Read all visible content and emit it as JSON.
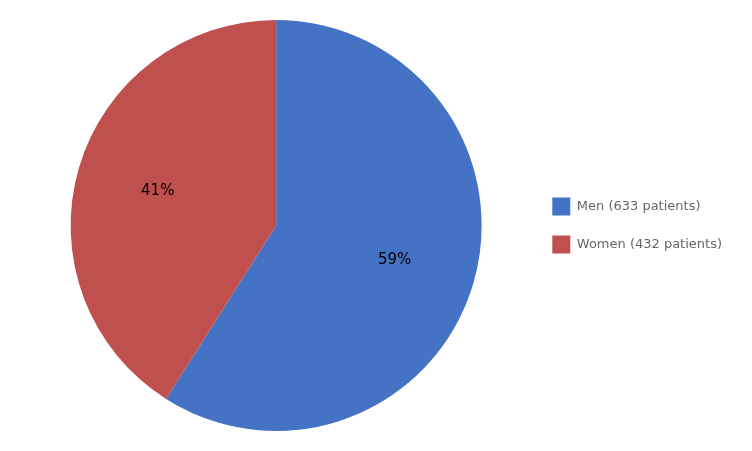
{
  "chart_data": {
    "type": "pie",
    "categories": [
      "Men (633 patients)",
      "Women (432 patients)"
    ],
    "values": [
      59,
      41
    ],
    "value_labels": [
      "59%",
      "41%"
    ],
    "colors": [
      "#4472C4",
      "#C0504D"
    ],
    "data_labels": true,
    "legend": "right"
  }
}
